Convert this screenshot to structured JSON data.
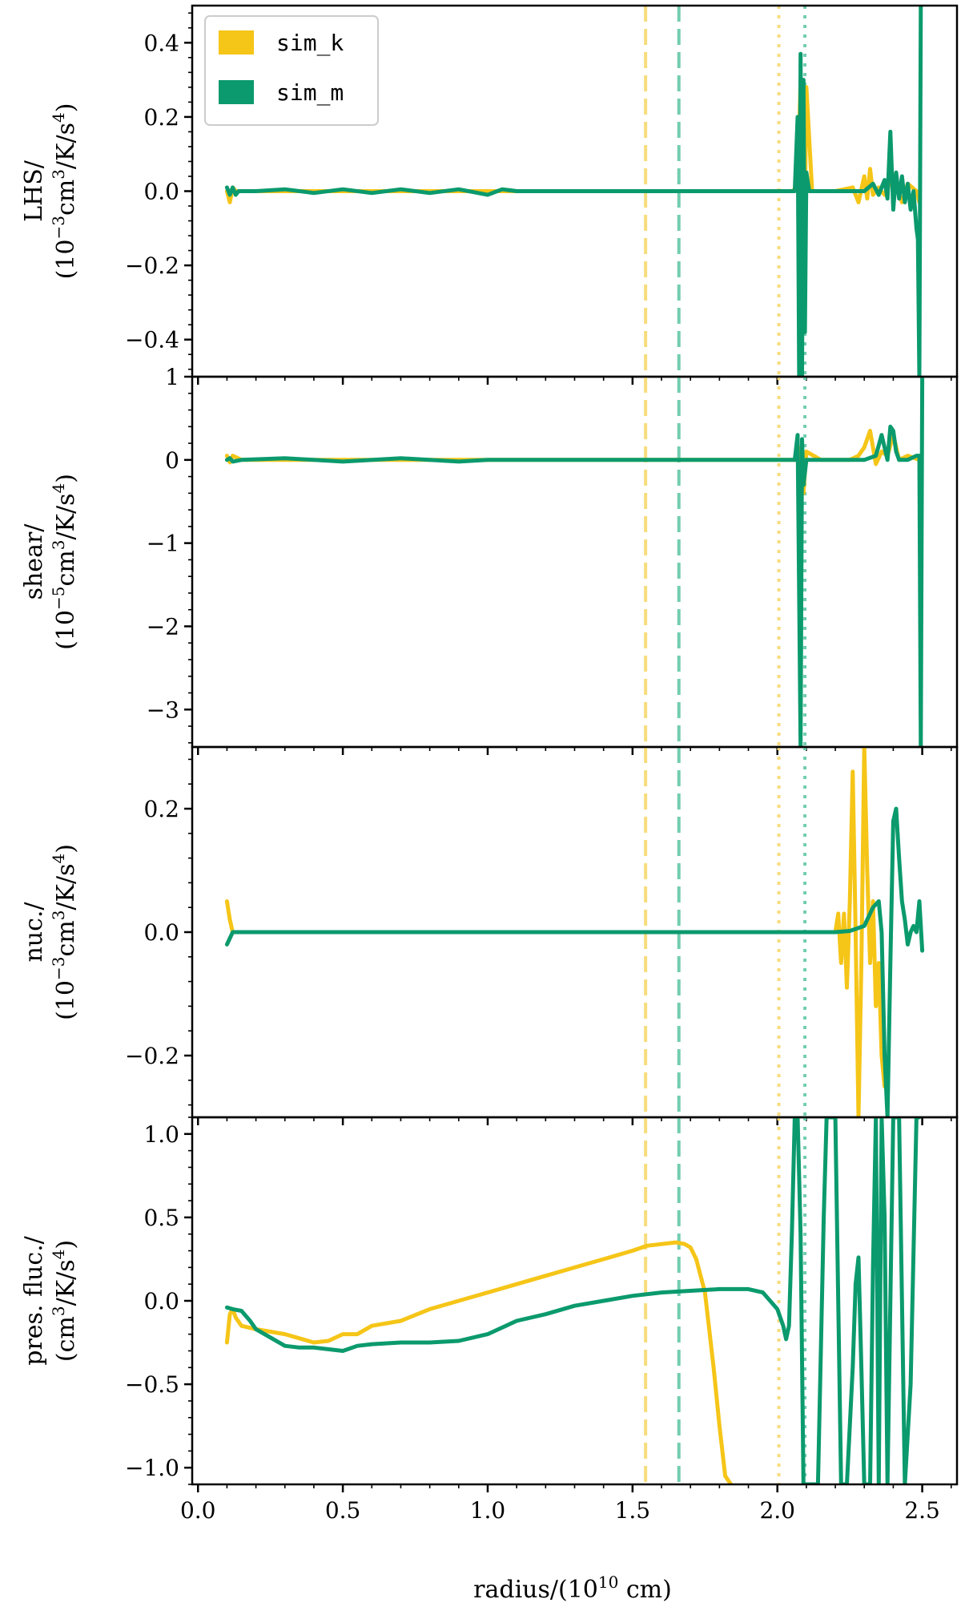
{
  "figure": {
    "xlabel": "radius/(10",
    "xlabel_sup": "10",
    "xlabel_tail": " cm)",
    "x_ticks": [
      "0.0",
      "0.5",
      "1.0",
      "1.5",
      "2.0",
      "2.5"
    ],
    "xlim": [
      -0.02,
      2.62
    ],
    "legend": {
      "location": "top-left",
      "entries": [
        {
          "name": "sim_k",
          "color": "#f5c518"
        },
        {
          "name": "sim_m",
          "color": "#0b9a6d"
        }
      ]
    },
    "colors": {
      "sim_k": "#f5c518",
      "sim_m": "#0b9a6d",
      "sim_k_light": "#f7dc7d",
      "sim_m_light": "#72cdb0"
    },
    "vlines": [
      {
        "series": "sim_k",
        "style": "dashed",
        "x": 1.545
      },
      {
        "series": "sim_m",
        "style": "dashed",
        "x": 1.66
      },
      {
        "series": "sim_k",
        "style": "dotted",
        "x": 2.005
      },
      {
        "series": "sim_m",
        "style": "dotted",
        "x": 2.095
      }
    ]
  },
  "chart_data": [
    {
      "type": "line",
      "ylabel_line1": "LHS/",
      "ylabel_unit": "(10−3cm3/K/s4)",
      "ylabel_parts": [
        [
          "(10",
          ""
        ],
        [
          "−3",
          "sup"
        ],
        [
          "cm",
          ""
        ],
        [
          "3",
          "sup"
        ],
        [
          "/K/s",
          ""
        ],
        [
          "4",
          "sup"
        ],
        [
          ")",
          ""
        ]
      ],
      "ylim": [
        -0.5,
        0.5
      ],
      "y_ticks": [
        0.4,
        0.2,
        0.0,
        -0.2,
        -0.4
      ],
      "y_tick_labels": [
        "0.4",
        "0.2",
        "0.0",
        "−0.2",
        "−0.4"
      ],
      "series": [
        {
          "name": "sim_k",
          "x": [
            0.1,
            0.11,
            0.12,
            0.13,
            0.15,
            0.5,
            1.0,
            1.5,
            2.0,
            2.05,
            2.07,
            2.08,
            2.09,
            2.1,
            2.12,
            2.2,
            2.26,
            2.28,
            2.3,
            2.31,
            2.32,
            2.33,
            2.35,
            2.37,
            2.4,
            2.43,
            2.45,
            2.48,
            2.49
          ],
          "y": [
            0.0,
            -0.03,
            0.01,
            0.0,
            0.0,
            0.0,
            0.0,
            0.0,
            0.0,
            0.0,
            0.01,
            0.3,
            -0.35,
            0.28,
            0.0,
            0.0,
            0.01,
            -0.03,
            0.04,
            -0.02,
            0.06,
            -0.01,
            0.01,
            -0.01,
            0.04,
            -0.03,
            0.02,
            0.0,
            -0.03
          ]
        },
        {
          "name": "sim_m",
          "x": [
            0.1,
            0.11,
            0.12,
            0.13,
            0.14,
            0.2,
            0.3,
            0.4,
            0.5,
            0.6,
            0.7,
            0.8,
            0.9,
            1.0,
            1.05,
            1.1,
            1.5,
            2.0,
            2.06,
            2.07,
            2.075,
            2.08,
            2.085,
            2.09,
            2.095,
            2.1,
            2.11,
            2.15,
            2.2,
            2.3,
            2.33,
            2.35,
            2.37,
            2.38,
            2.39,
            2.4,
            2.41,
            2.42,
            2.43,
            2.44,
            2.45,
            2.46,
            2.47,
            2.48,
            2.485,
            2.49,
            2.495
          ],
          "y": [
            0.01,
            -0.01,
            0.01,
            -0.01,
            0.0,
            0.0,
            0.005,
            -0.005,
            0.005,
            -0.005,
            0.005,
            -0.005,
            0.005,
            -0.01,
            0.005,
            0.0,
            0.0,
            0.0,
            0.0,
            0.2,
            -0.5,
            0.37,
            -0.5,
            0.3,
            -0.38,
            0.05,
            0.0,
            0.0,
            0.0,
            0.0,
            0.02,
            -0.01,
            0.03,
            -0.02,
            0.16,
            -0.05,
            0.05,
            -0.02,
            0.04,
            -0.03,
            0.02,
            -0.05,
            0.0,
            -0.1,
            -0.13,
            -0.5,
            0.5
          ]
        }
      ]
    },
    {
      "type": "line",
      "ylabel_line1": "shear/",
      "ylabel_unit": "(10−5cm3/K/s4)",
      "ylabel_parts": [
        [
          "(10",
          ""
        ],
        [
          "−5",
          "sup"
        ],
        [
          "cm",
          ""
        ],
        [
          "3",
          "sup"
        ],
        [
          "/K/s",
          ""
        ],
        [
          "4",
          "sup"
        ],
        [
          ")",
          ""
        ]
      ],
      "ylim": [
        -3.45,
        1.0
      ],
      "y_ticks": [
        1,
        0,
        -1,
        -2,
        -3
      ],
      "y_tick_labels": [
        "1",
        "0",
        "−1",
        "−2",
        "−3"
      ],
      "series": [
        {
          "name": "sim_k",
          "x": [
            0.1,
            0.11,
            0.12,
            0.15,
            0.5,
            1.0,
            1.5,
            2.0,
            2.07,
            2.08,
            2.09,
            2.1,
            2.15,
            2.25,
            2.28,
            2.3,
            2.32,
            2.34,
            2.36,
            2.38,
            2.4,
            2.42,
            2.45,
            2.49
          ],
          "y": [
            0.05,
            -0.03,
            0.05,
            0.0,
            0.0,
            0.0,
            0.0,
            0.0,
            0.0,
            0.15,
            -0.4,
            0.1,
            0.0,
            0.0,
            0.05,
            0.15,
            0.35,
            -0.05,
            0.1,
            0.05,
            0.3,
            0.0,
            0.05,
            0.0
          ]
        },
        {
          "name": "sim_m",
          "x": [
            0.1,
            0.11,
            0.12,
            0.15,
            0.3,
            0.5,
            0.7,
            0.9,
            1.0,
            1.1,
            1.5,
            2.0,
            2.06,
            2.07,
            2.08,
            2.085,
            2.09,
            2.1,
            2.12,
            2.2,
            2.3,
            2.34,
            2.36,
            2.38,
            2.39,
            2.4,
            2.41,
            2.42,
            2.45,
            2.48,
            2.49,
            2.495,
            2.5
          ],
          "y": [
            0.0,
            0.02,
            -0.02,
            0.0,
            0.02,
            -0.02,
            0.02,
            -0.02,
            0.0,
            0.0,
            0.0,
            0.0,
            0.0,
            0.3,
            -3.45,
            0.25,
            -0.3,
            0.0,
            0.0,
            0.0,
            0.0,
            0.05,
            0.3,
            0.0,
            0.4,
            0.35,
            0.1,
            0.0,
            0.0,
            0.05,
            0.05,
            -3.45,
            1.0
          ]
        }
      ]
    },
    {
      "type": "line",
      "ylabel_line1": "nuc./",
      "ylabel_unit": "(10−3cm3/K/s4)",
      "ylabel_parts": [
        [
          "(10",
          ""
        ],
        [
          "−3",
          "sup"
        ],
        [
          "cm",
          ""
        ],
        [
          "3",
          "sup"
        ],
        [
          "/K/s",
          ""
        ],
        [
          "4",
          "sup"
        ],
        [
          ")",
          ""
        ]
      ],
      "ylim": [
        -0.3,
        0.3
      ],
      "y_ticks": [
        0.2,
        0.0,
        -0.2
      ],
      "y_tick_labels": [
        "0.2",
        "0.0",
        "−0.2"
      ],
      "series": [
        {
          "name": "sim_k",
          "x": [
            0.1,
            0.11,
            0.12,
            0.13,
            0.5,
            1.0,
            1.5,
            2.0,
            2.15,
            2.2,
            2.21,
            2.22,
            2.23,
            2.24,
            2.25,
            2.26,
            2.27,
            2.28,
            2.29,
            2.3,
            2.31,
            2.32,
            2.33,
            2.34,
            2.35,
            2.36,
            2.37
          ],
          "y": [
            0.05,
            0.02,
            0.0,
            0.0,
            0.0,
            0.0,
            0.0,
            0.0,
            0.0,
            0.0,
            0.03,
            -0.05,
            0.03,
            -0.09,
            0.05,
            0.26,
            0.0,
            -0.3,
            -0.05,
            0.3,
            0.1,
            -0.05,
            0.05,
            -0.12,
            -0.05,
            -0.2,
            -0.25
          ]
        },
        {
          "name": "sim_m",
          "x": [
            0.1,
            0.11,
            0.12,
            0.13,
            0.5,
            1.0,
            1.5,
            2.0,
            2.2,
            2.25,
            2.3,
            2.33,
            2.35,
            2.36,
            2.37,
            2.38,
            2.39,
            2.4,
            2.41,
            2.42,
            2.43,
            2.44,
            2.45,
            2.46,
            2.47,
            2.48,
            2.49,
            2.5
          ],
          "y": [
            -0.02,
            -0.01,
            0.0,
            0.0,
            0.0,
            0.0,
            0.0,
            0.0,
            0.0,
            0.002,
            0.01,
            0.04,
            0.05,
            0.0,
            -0.2,
            -0.3,
            -0.05,
            0.18,
            0.2,
            0.12,
            0.05,
            0.02,
            -0.02,
            0.0,
            0.01,
            0.0,
            0.05,
            -0.03
          ]
        }
      ]
    },
    {
      "type": "line",
      "ylabel_line1": "pres. fluc./",
      "ylabel_unit": "(cm3/K/s4)",
      "ylabel_parts": [
        [
          "(cm",
          ""
        ],
        [
          "3",
          "sup"
        ],
        [
          "/K/s",
          ""
        ],
        [
          "4",
          "sup"
        ],
        [
          ")",
          ""
        ]
      ],
      "ylim": [
        -1.1,
        1.1
      ],
      "y_ticks": [
        1.0,
        0.5,
        0.0,
        -0.5,
        -1.0
      ],
      "y_tick_labels": [
        "1.0",
        "0.5",
        "0.0",
        "−0.5",
        "−1.0"
      ],
      "series": [
        {
          "name": "sim_k",
          "x": [
            0.1,
            0.11,
            0.12,
            0.13,
            0.15,
            0.2,
            0.3,
            0.4,
            0.45,
            0.5,
            0.55,
            0.6,
            0.7,
            0.8,
            0.9,
            1.0,
            1.1,
            1.2,
            1.3,
            1.4,
            1.5,
            1.55,
            1.6,
            1.65,
            1.68,
            1.7,
            1.72,
            1.75,
            1.78,
            1.8,
            1.82,
            1.84
          ],
          "y": [
            -0.25,
            -0.08,
            -0.05,
            -0.1,
            -0.15,
            -0.17,
            -0.2,
            -0.25,
            -0.24,
            -0.2,
            -0.2,
            -0.15,
            -0.12,
            -0.05,
            0.0,
            0.05,
            0.1,
            0.15,
            0.2,
            0.25,
            0.3,
            0.33,
            0.34,
            0.35,
            0.34,
            0.32,
            0.25,
            0.05,
            -0.4,
            -0.75,
            -1.05,
            -1.1
          ]
        },
        {
          "name": "sim_m",
          "x": [
            0.1,
            0.12,
            0.15,
            0.18,
            0.2,
            0.25,
            0.3,
            0.35,
            0.4,
            0.45,
            0.5,
            0.55,
            0.6,
            0.7,
            0.8,
            0.9,
            1.0,
            1.1,
            1.2,
            1.3,
            1.4,
            1.5,
            1.6,
            1.7,
            1.8,
            1.9,
            1.95,
            2.0,
            2.02,
            2.03,
            2.04,
            2.05,
            2.06,
            2.07,
            2.08,
            2.09,
            2.1,
            2.12,
            2.14,
            2.16,
            2.17,
            2.18,
            2.2,
            2.22,
            2.24,
            2.26,
            2.27,
            2.28,
            2.29,
            2.3,
            2.32,
            2.33,
            2.34,
            2.35,
            2.36,
            2.37,
            2.38,
            2.4,
            2.42,
            2.44,
            2.46,
            2.48,
            2.49
          ],
          "y": [
            -0.04,
            -0.05,
            -0.06,
            -0.12,
            -0.17,
            -0.22,
            -0.27,
            -0.28,
            -0.28,
            -0.29,
            -0.3,
            -0.27,
            -0.26,
            -0.25,
            -0.25,
            -0.24,
            -0.2,
            -0.12,
            -0.08,
            -0.03,
            0.0,
            0.03,
            0.05,
            0.06,
            0.07,
            0.07,
            0.05,
            -0.05,
            -0.15,
            -0.23,
            -0.15,
            0.4,
            1.1,
            1.1,
            0.4,
            -1.1,
            -1.1,
            -1.1,
            -1.1,
            0.5,
            1.1,
            1.1,
            1.1,
            -1.1,
            -1.1,
            -0.4,
            0.1,
            0.26,
            -0.4,
            -1.1,
            -1.1,
            0.2,
            1.1,
            -1.1,
            1.1,
            0.5,
            -1.1,
            1.1,
            1.1,
            -1.1,
            -0.5,
            1.1,
            1.1
          ]
        }
      ]
    }
  ]
}
